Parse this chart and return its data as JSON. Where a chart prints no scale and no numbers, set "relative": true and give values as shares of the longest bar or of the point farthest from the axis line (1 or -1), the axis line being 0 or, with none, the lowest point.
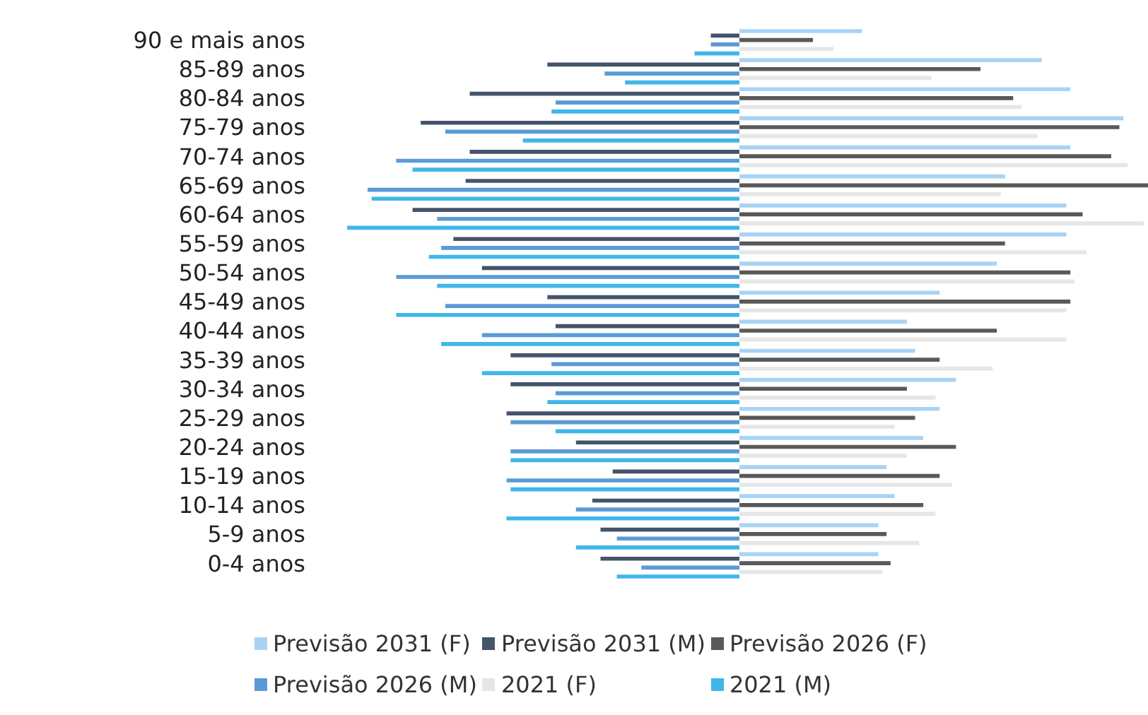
{
  "chart_data": {
    "type": "bar",
    "orientation": "horizontal",
    "relative": true,
    "legend": "bottom",
    "categories": [
      "90 e mais anos",
      "85-89 anos",
      "80-84 anos",
      "75-79 anos",
      "70-74 anos",
      "65-69 anos",
      "60-64 anos",
      "55-59 anos",
      "50-54 anos",
      "45-49 anos",
      "40-44 anos",
      "35-39 anos",
      "30-34 anos",
      "25-29 anos",
      "20-24 anos",
      "15-19 anos",
      "10-14 anos",
      "5-9 anos",
      "0-4 anos"
    ],
    "series": [
      {
        "name": "Previsão 2031 (F)",
        "color": "#a8d3f5",
        "values": [
          0.3,
          0.74,
          0.81,
          0.94,
          0.81,
          0.65,
          0.8,
          0.8,
          0.63,
          0.49,
          0.41,
          0.43,
          0.53,
          0.49,
          0.45,
          0.36,
          0.38,
          0.34,
          0.34
        ]
      },
      {
        "name": "Previsão 2031 (M)",
        "color": "#44546a",
        "values": [
          -0.07,
          -0.47,
          -0.66,
          -0.78,
          -0.66,
          -0.67,
          -0.8,
          -0.7,
          -0.63,
          -0.47,
          -0.45,
          -0.56,
          -0.56,
          -0.57,
          -0.4,
          -0.31,
          -0.36,
          -0.34,
          -0.34
        ]
      },
      {
        "name": "Previsão 2026 (F)",
        "color": "#595959",
        "values": [
          0.18,
          0.59,
          0.67,
          0.93,
          0.91,
          1,
          0.84,
          0.65,
          0.81,
          0.81,
          0.63,
          0.49,
          0.41,
          0.43,
          0.53,
          0.49,
          0.45,
          0.36,
          0.37
        ]
      },
      {
        "name": "Previsão 2026 (M)",
        "color": "#5b9bd5",
        "values": [
          -0.07,
          -0.33,
          -0.45,
          -0.72,
          -0.84,
          -0.91,
          -0.74,
          -0.73,
          -0.84,
          -0.72,
          -0.63,
          -0.46,
          -0.45,
          -0.56,
          -0.56,
          -0.57,
          -0.4,
          -0.3,
          -0.24
        ]
      },
      {
        "name": "2021 (F)",
        "color": "#e7e6e6",
        "values": [
          0.23,
          0.47,
          0.69,
          0.73,
          0.95,
          0.64,
          0.99,
          0.85,
          0.82,
          0.8,
          0.8,
          0.62,
          0.48,
          0.38,
          0.41,
          0.52,
          0.48,
          0.44,
          0.35
        ]
      },
      {
        "name": "2021 (M)",
        "color": "#3fb7ea",
        "values": [
          -0.11,
          -0.28,
          -0.46,
          -0.53,
          -0.8,
          -0.9,
          -0.96,
          -0.76,
          -0.74,
          -0.84,
          -0.73,
          -0.63,
          -0.47,
          -0.45,
          -0.56,
          -0.56,
          -0.57,
          -0.4,
          -0.3
        ]
      }
    ]
  }
}
